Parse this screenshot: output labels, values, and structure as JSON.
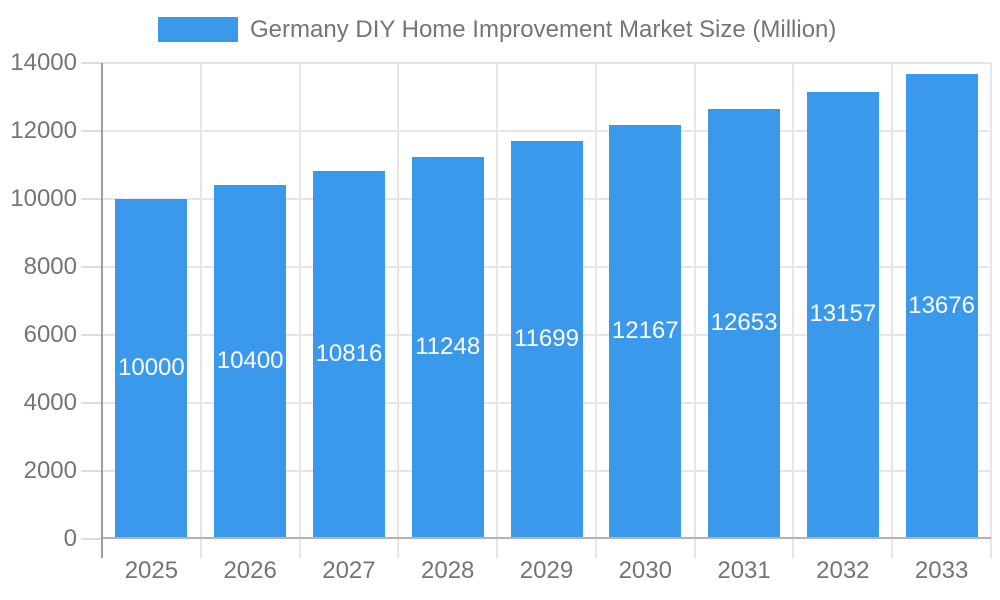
{
  "chart_data": {
    "type": "bar",
    "title": "Germany DIY Home Improvement Market Size (Million)",
    "categories": [
      "2025",
      "2026",
      "2027",
      "2028",
      "2029",
      "2030",
      "2031",
      "2032",
      "2033"
    ],
    "values": [
      10000,
      10400,
      10816,
      11248,
      11699,
      12167,
      12653,
      13157,
      13676
    ],
    "xlabel": "",
    "ylabel": "",
    "ylim": [
      0,
      14000
    ],
    "ytick_step": 2000,
    "ytick_labels": [
      "0",
      "2000",
      "4000",
      "6000",
      "8000",
      "10000",
      "12000",
      "14000"
    ],
    "grid": true,
    "legend_position": "top",
    "colors": {
      "bar": "#3B99EC",
      "axis_text": "#757575",
      "title_text": "#757575",
      "value_label": "#FFFFFF",
      "gridline": "#E6E6E6",
      "tick": "#DCDCDC",
      "baseline": "#B3B3B3",
      "y_axis_line": "#9E9E9E",
      "background": "#FFFFFF"
    }
  }
}
